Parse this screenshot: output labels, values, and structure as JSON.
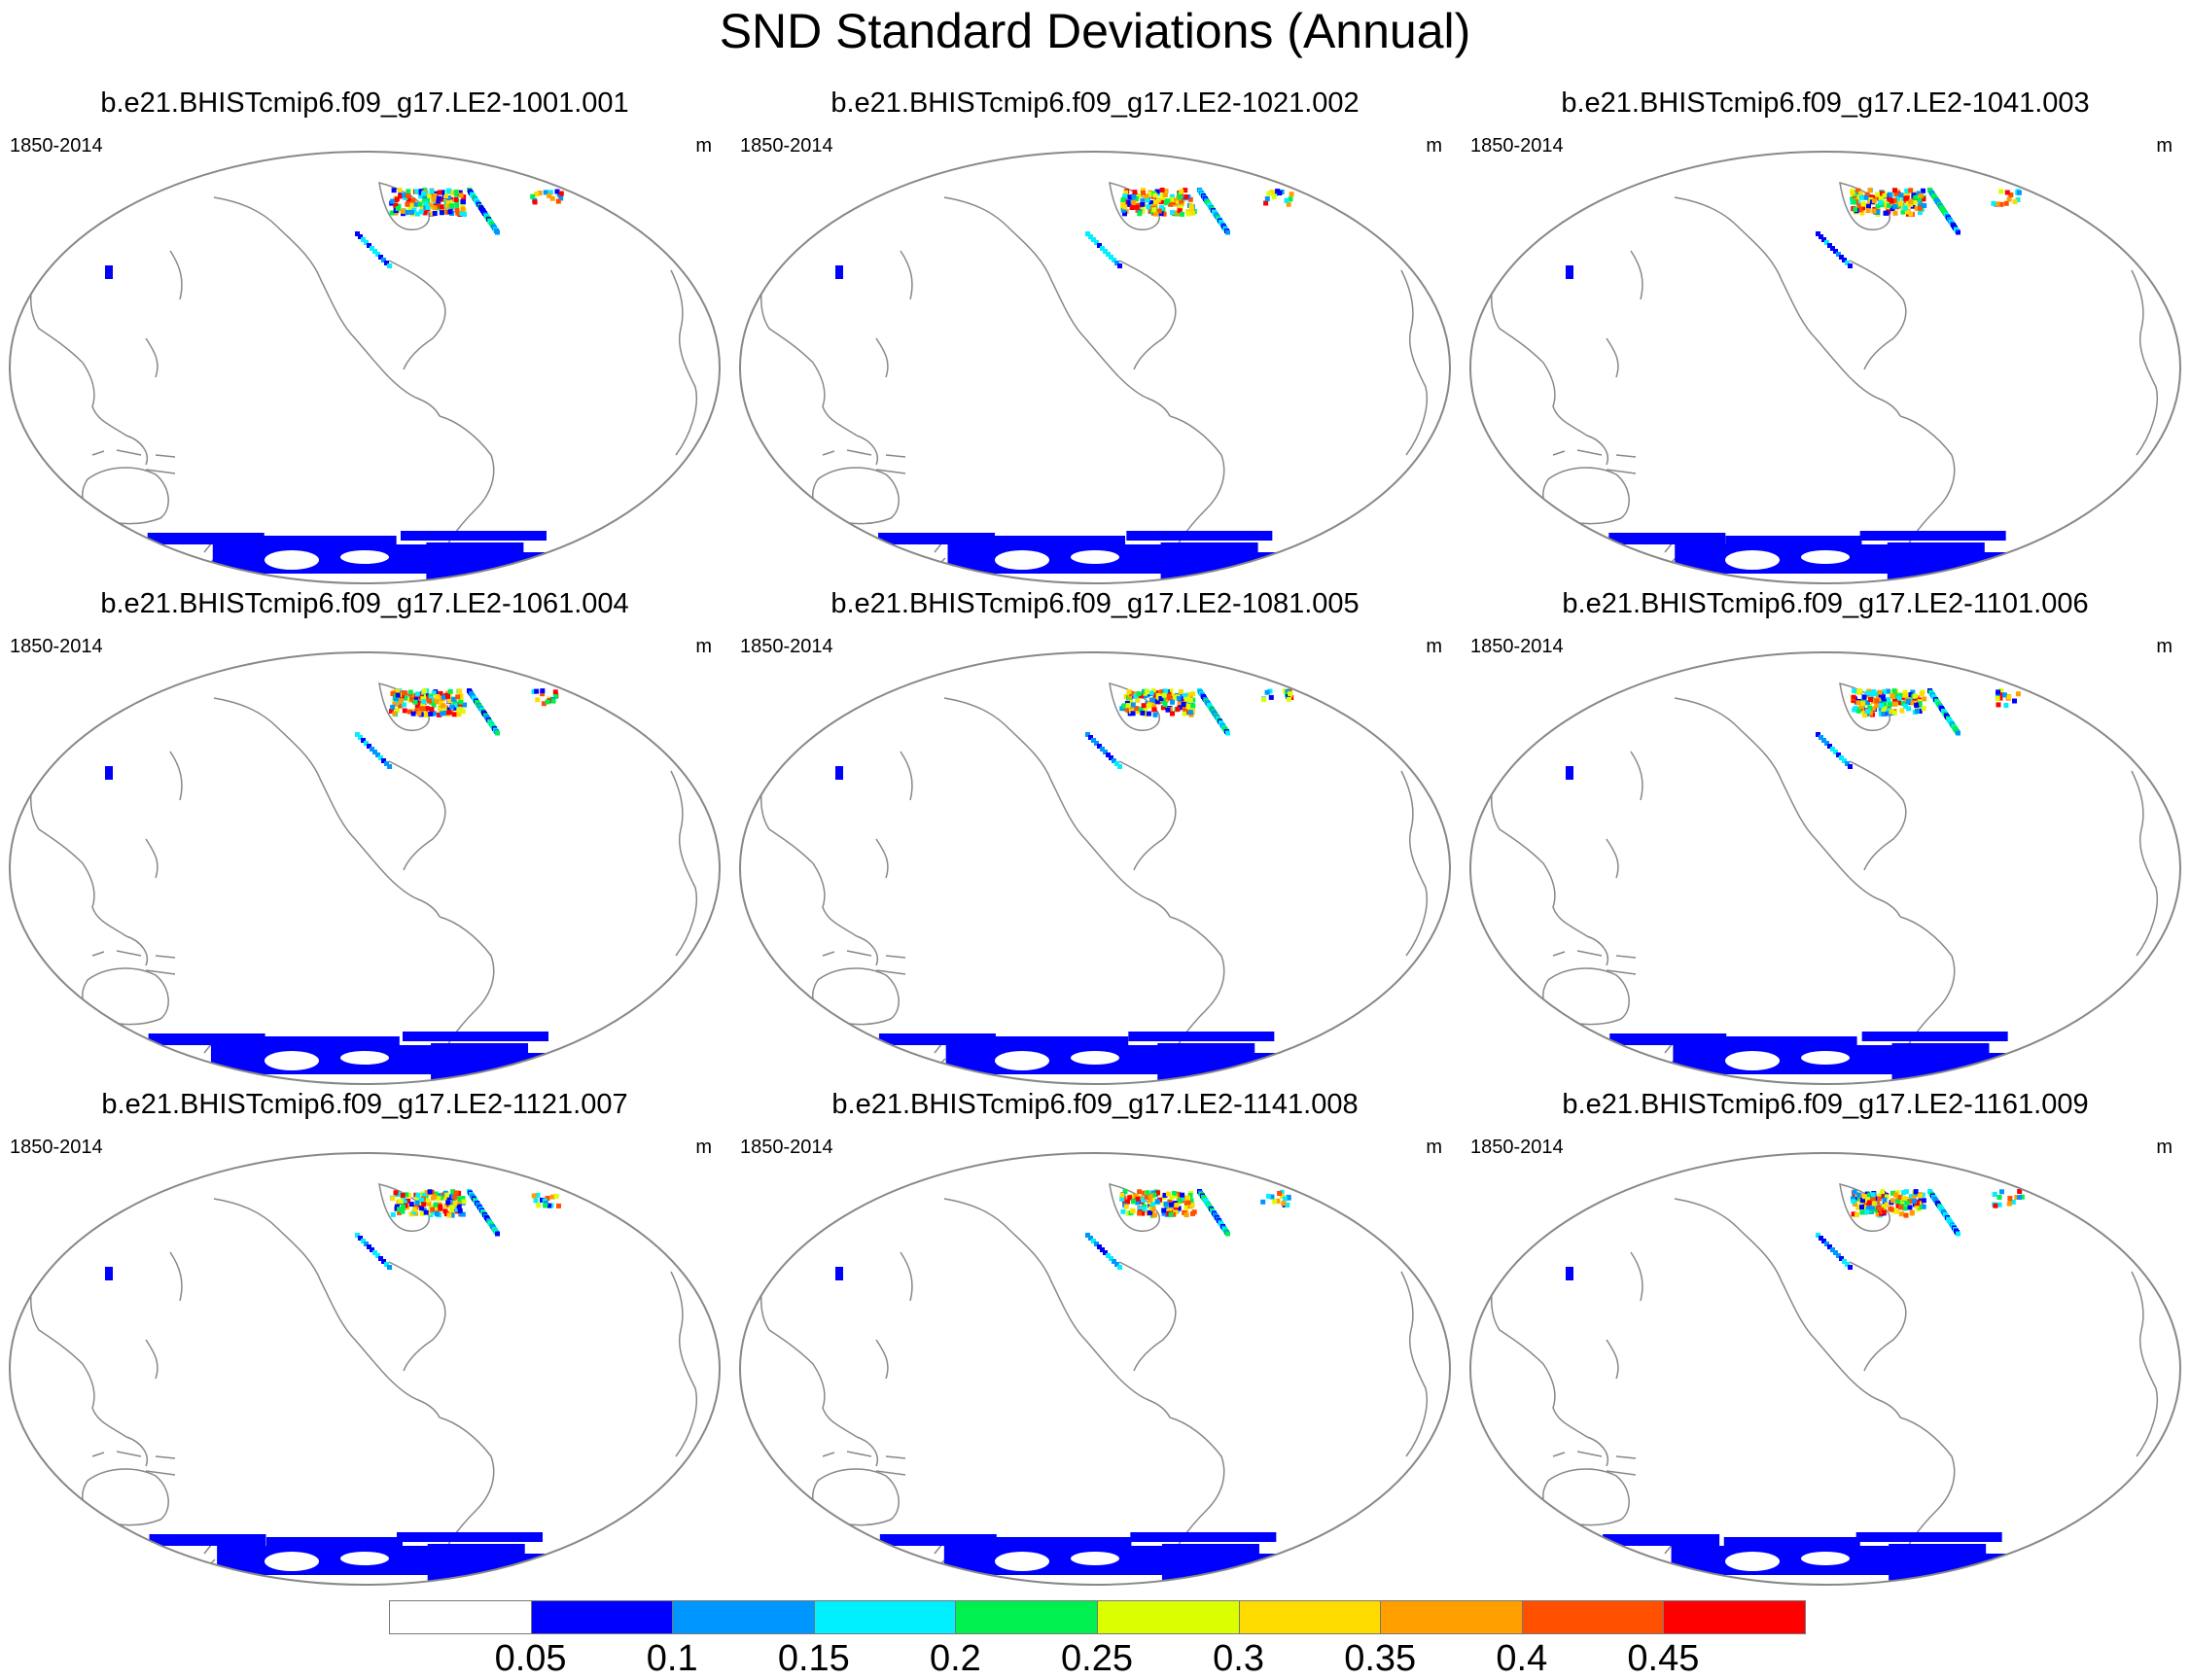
{
  "title": "SND Standard Deviations (Annual)",
  "units": "m",
  "period": "1850-2014",
  "panels": [
    {
      "title": "b.e21.BHISTcmip6.f09_g17.LE2-1001.001"
    },
    {
      "title": "b.e21.BHISTcmip6.f09_g17.LE2-1021.002"
    },
    {
      "title": "b.e21.BHISTcmip6.f09_g17.LE2-1041.003"
    },
    {
      "title": "b.e21.BHISTcmip6.f09_g17.LE2-1061.004"
    },
    {
      "title": "b.e21.BHISTcmip6.f09_g17.LE2-1081.005"
    },
    {
      "title": "b.e21.BHISTcmip6.f09_g17.LE2-1101.006"
    },
    {
      "title": "b.e21.BHISTcmip6.f09_g17.LE2-1121.007"
    },
    {
      "title": "b.e21.BHISTcmip6.f09_g17.LE2-1141.008"
    },
    {
      "title": "b.e21.BHISTcmip6.f09_g17.LE2-1161.009"
    }
  ],
  "colorbar": {
    "labels": [
      "0.05",
      "0.1",
      "0.15",
      "0.2",
      "0.25",
      "0.3",
      "0.35",
      "0.4",
      "0.45"
    ],
    "colors": [
      "#ffffff",
      "#0000ff",
      "#0096ff",
      "#00f0ff",
      "#00f050",
      "#dcff00",
      "#ffdc00",
      "#ffa000",
      "#ff5000",
      "#ff0000"
    ]
  },
  "colors": {
    "coastline": "#888888",
    "low_snow": "#0000ff"
  }
}
